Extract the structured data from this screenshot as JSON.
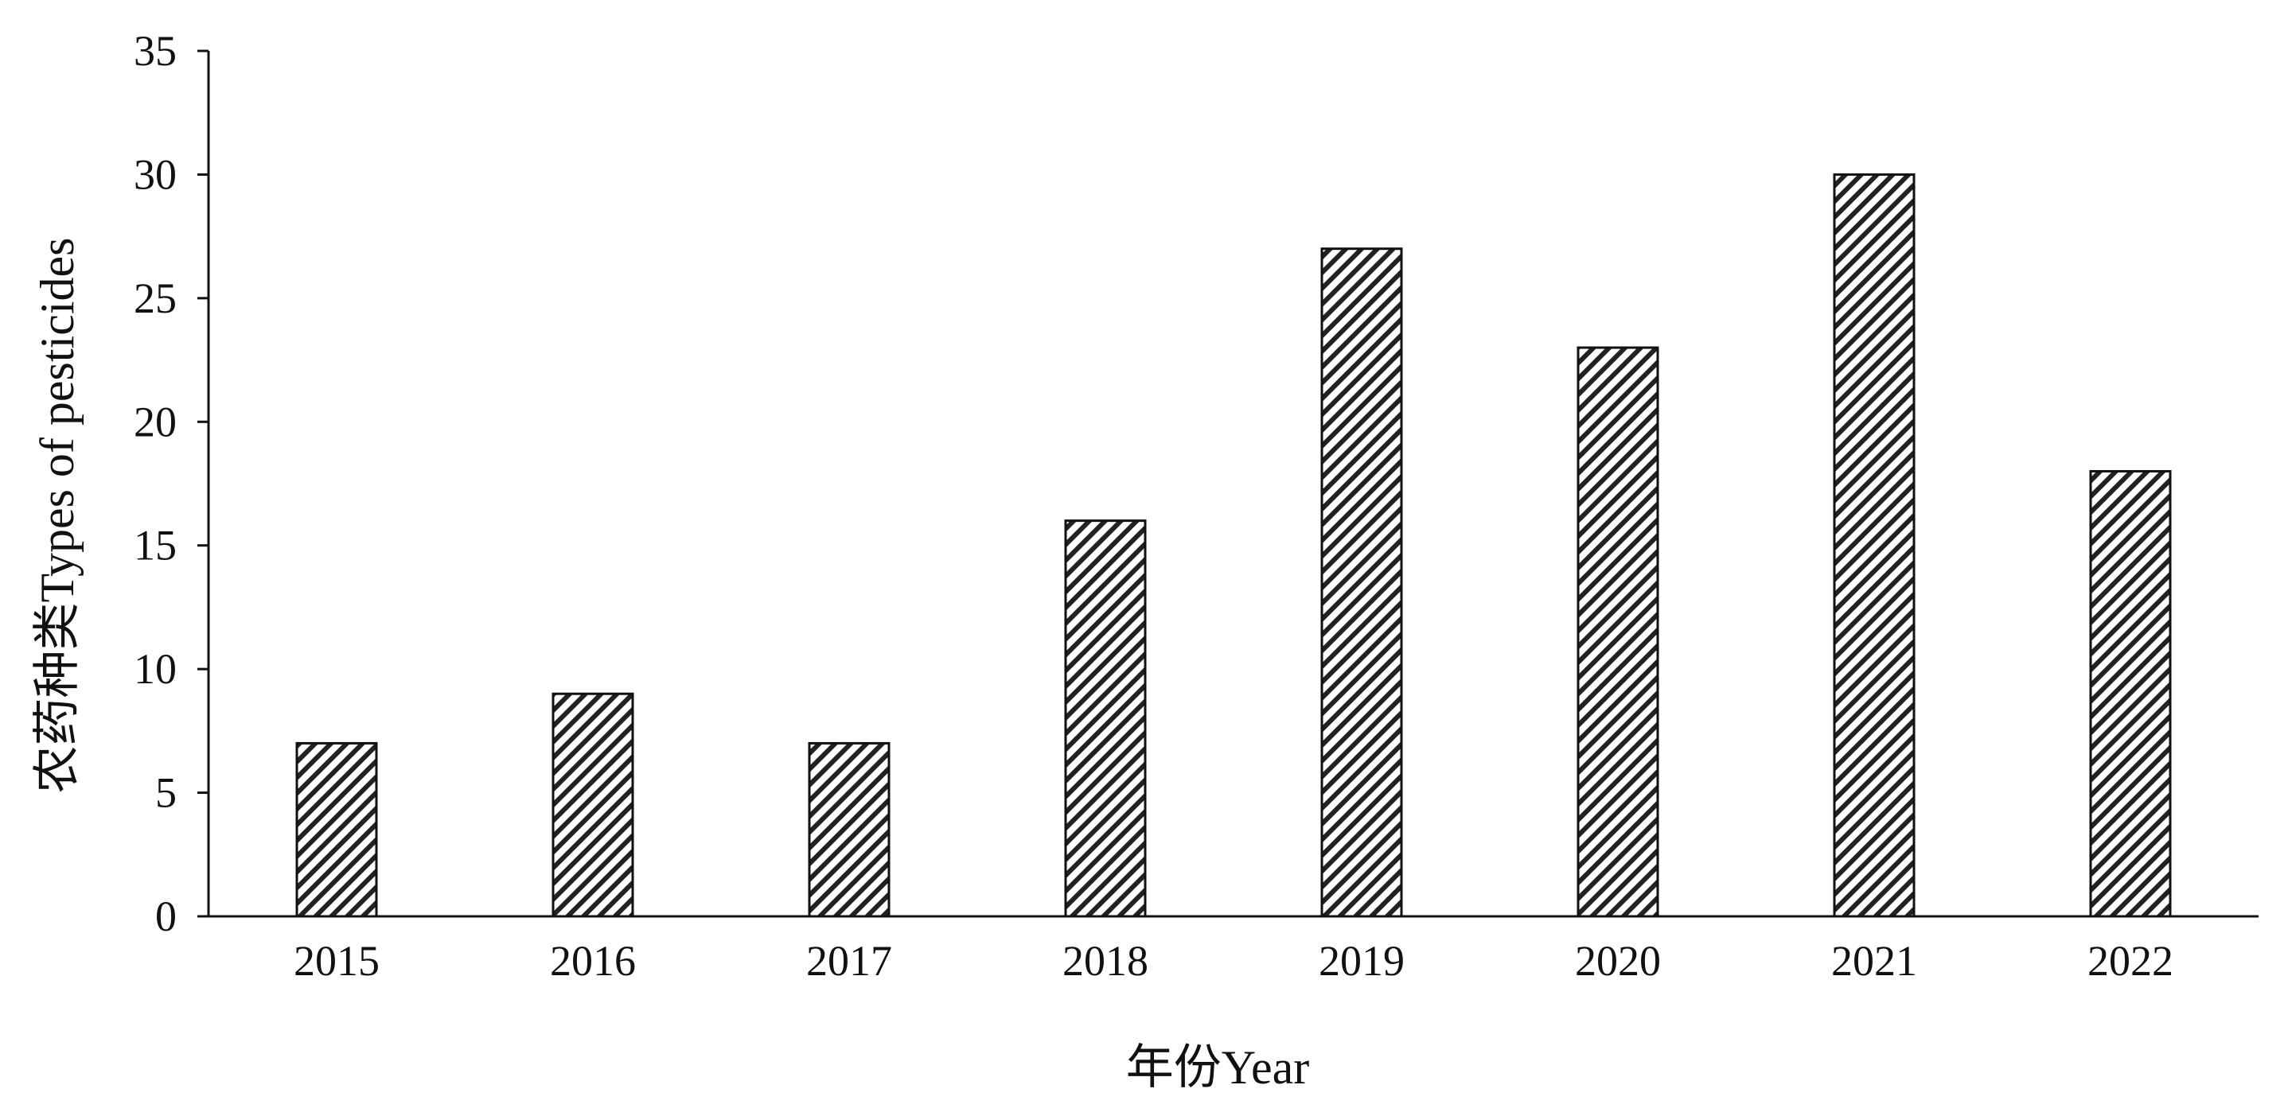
{
  "chart_data": {
    "type": "bar",
    "title": "",
    "xlabel": "年份Year",
    "ylabel": "农药种类Types of pesticides",
    "categories": [
      "2015",
      "2016",
      "2017",
      "2018",
      "2019",
      "2020",
      "2021",
      "2022"
    ],
    "values": [
      7,
      9,
      7,
      16,
      27,
      23,
      30,
      18
    ],
    "ylim": [
      0,
      35
    ],
    "yticks": [
      0,
      5,
      10,
      15,
      20,
      25,
      30,
      35
    ],
    "grid": false,
    "legend": "none",
    "bar_fill": "diagonal-hatch",
    "colors": {
      "bar_stroke": "#111111",
      "hatch": "#222222",
      "axis": "#111111",
      "background": "#ffffff"
    }
  }
}
